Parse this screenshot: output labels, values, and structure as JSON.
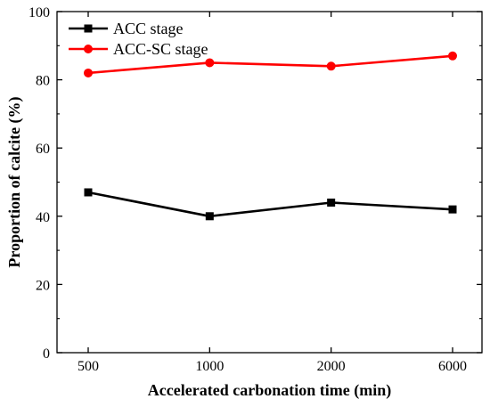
{
  "chart_data": {
    "type": "line",
    "title": "",
    "xlabel": "Accelerated carbonation time (min)",
    "ylabel": "Proportion of calcite (%)",
    "categories": [
      "500",
      "1000",
      "2000",
      "6000"
    ],
    "ylim": [
      0,
      100
    ],
    "yticks": [
      "0",
      "20",
      "40",
      "60",
      "80",
      "100"
    ],
    "legend_position": "top-left",
    "grid": false,
    "series": [
      {
        "name": "ACC stage",
        "values": [
          47,
          40,
          44,
          42
        ],
        "color": "#000000",
        "marker": "square"
      },
      {
        "name": "ACC-SC stage",
        "values": [
          82,
          85,
          84,
          87
        ],
        "color": "#ff0000",
        "marker": "circle"
      }
    ]
  }
}
